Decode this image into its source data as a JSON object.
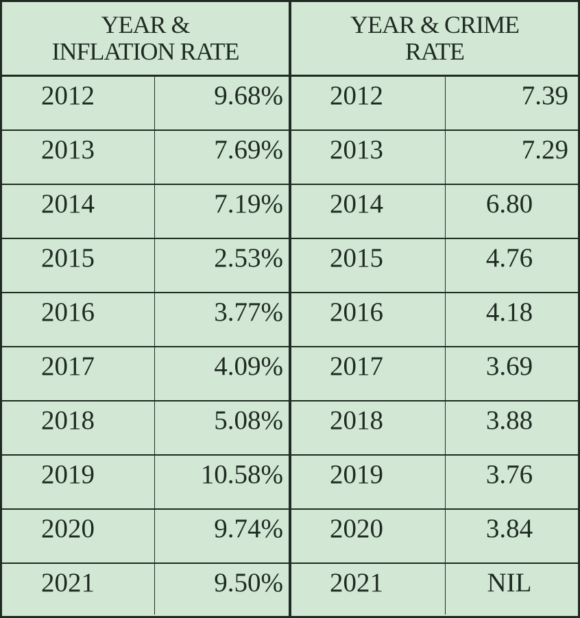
{
  "inflation_table": {
    "header_line1": "YEAR &",
    "header_line2": "INFLATION RATE",
    "rows": [
      {
        "year": "2012",
        "value": "9.68%"
      },
      {
        "year": "2013",
        "value": "7.69%"
      },
      {
        "year": "2014",
        "value": "7.19%"
      },
      {
        "year": "2015",
        "value": "2.53%"
      },
      {
        "year": "2016",
        "value": "3.77%"
      },
      {
        "year": "2017",
        "value": "4.09%"
      },
      {
        "year": "2018",
        "value": "5.08%"
      },
      {
        "year": "2019",
        "value": "10.58%"
      },
      {
        "year": "2020",
        "value": "9.74%"
      },
      {
        "year": "2021",
        "value": "9.50%"
      }
    ]
  },
  "crime_table": {
    "header_line1": "YEAR & CRIME",
    "header_line2": "RATE",
    "rows": [
      {
        "year": "2012",
        "value": "7.39"
      },
      {
        "year": "2013",
        "value": "7.29"
      },
      {
        "year": "2014",
        "value": "6.80"
      },
      {
        "year": "2015",
        "value": "4.76"
      },
      {
        "year": "2016",
        "value": "4.18"
      },
      {
        "year": "2017",
        "value": "3.69"
      },
      {
        "year": "2018",
        "value": "3.88"
      },
      {
        "year": "2019",
        "value": "3.76"
      },
      {
        "year": "2020",
        "value": "3.84"
      },
      {
        "year": "2021",
        "value": "NIL"
      }
    ]
  }
}
